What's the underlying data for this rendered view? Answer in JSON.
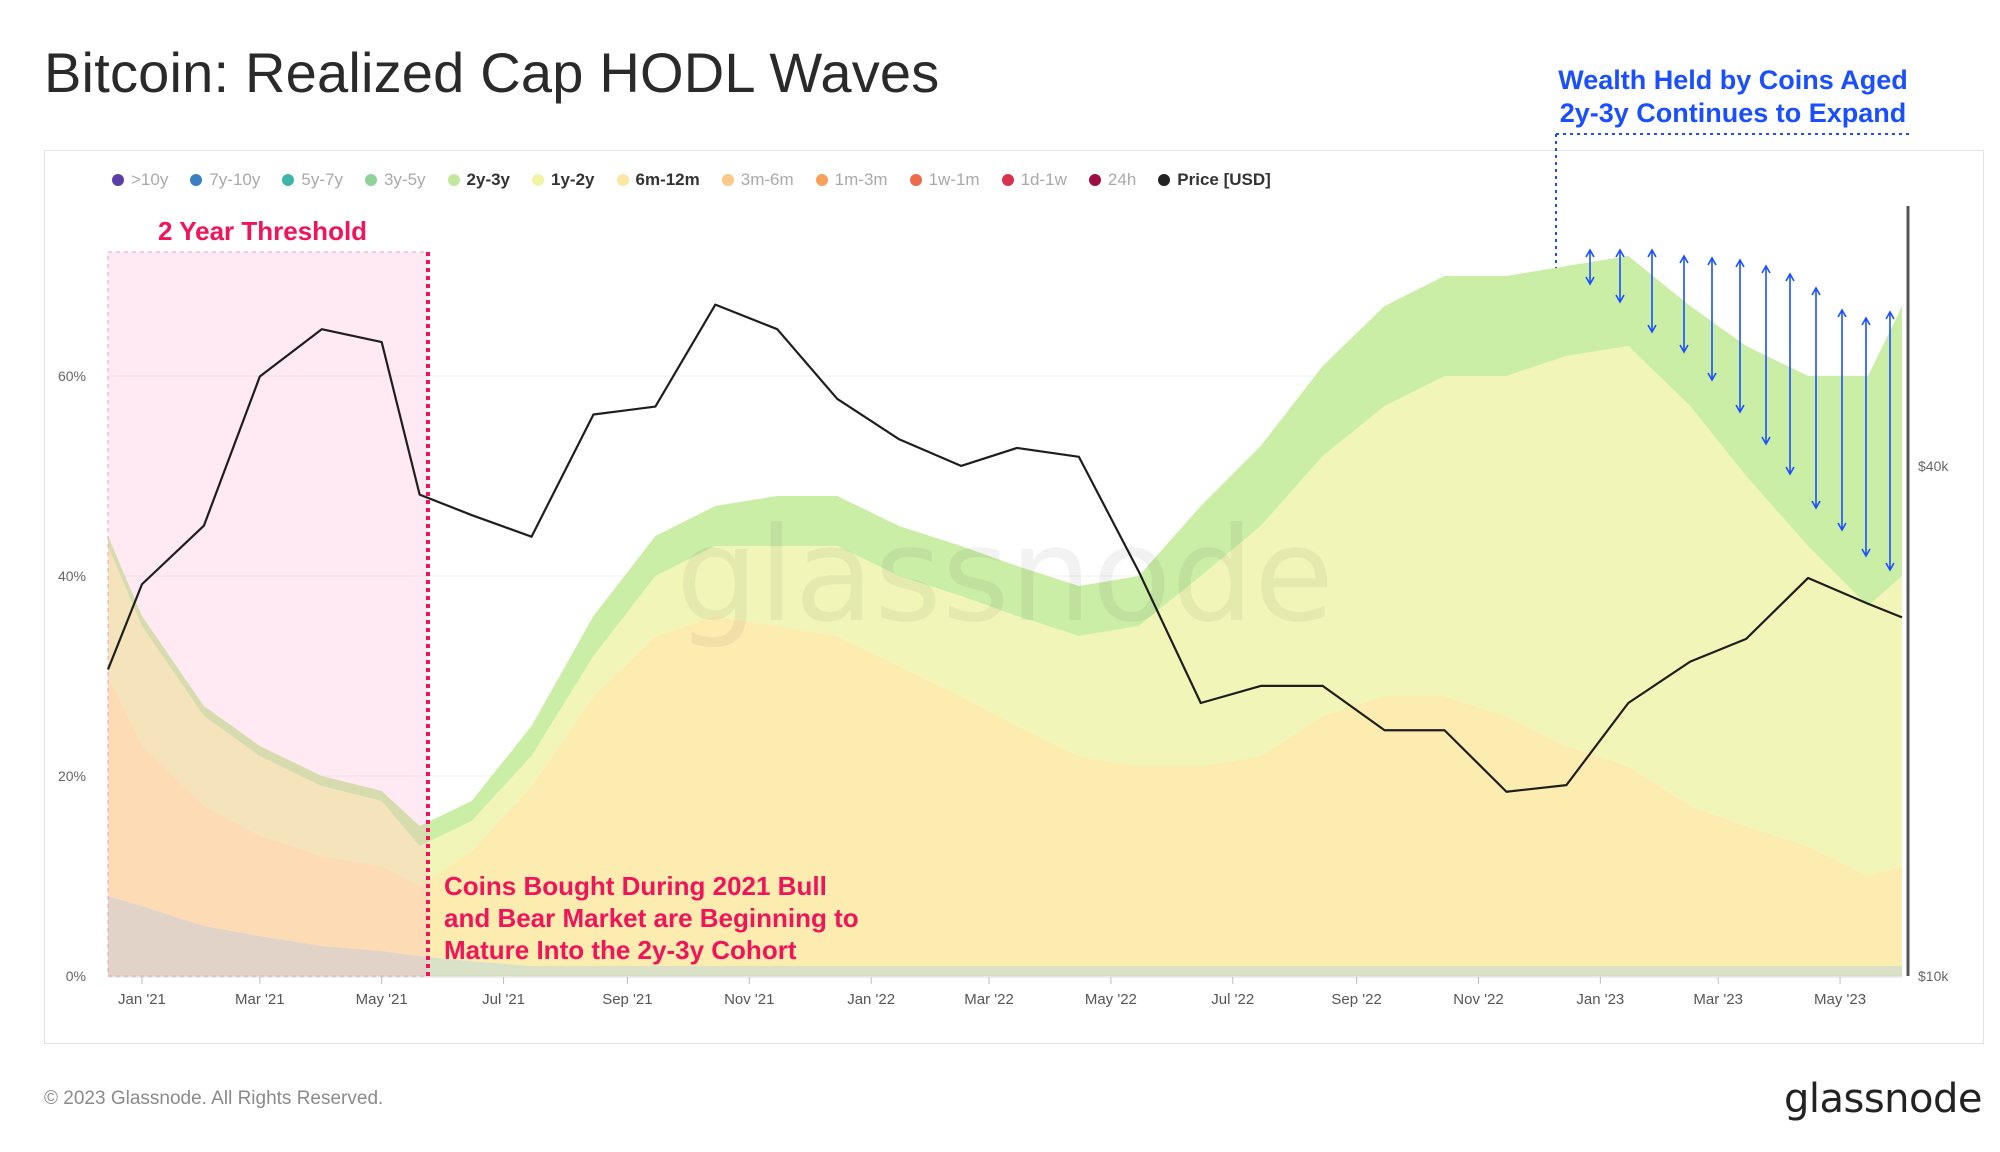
{
  "title": "Bitcoin: Realized Cap HODL Waves",
  "footer": "© 2023 Glassnode. All Rights Reserved.",
  "brand": "glassnode",
  "watermark": "glassnode",
  "legend": [
    {
      "label": ">10y",
      "color": "#5b3fa6",
      "active": false
    },
    {
      "label": "7y-10y",
      "color": "#3a7fc1",
      "active": false
    },
    {
      "label": "5y-7y",
      "color": "#3fb5a8",
      "active": false
    },
    {
      "label": "3y-5y",
      "color": "#8fd39b",
      "active": false
    },
    {
      "label": "2y-3y",
      "color": "#c2e89c",
      "active": true
    },
    {
      "label": "1y-2y",
      "color": "#f1f4a4",
      "active": true
    },
    {
      "label": "6m-12m",
      "color": "#fce6a3",
      "active": true
    },
    {
      "label": "3m-6m",
      "color": "#fbc98a",
      "active": false
    },
    {
      "label": "1m-3m",
      "color": "#f6a05b",
      "active": false
    },
    {
      "label": "1w-1m",
      "color": "#ee6b4a",
      "active": false
    },
    {
      "label": "1d-1w",
      "color": "#d9324f",
      "active": false
    },
    {
      "label": "24h",
      "color": "#9e0e45",
      "active": false
    },
    {
      "label": "Price [USD]",
      "color": "#222222",
      "active": true
    }
  ],
  "annotations": {
    "threshold": "2 Year Threshold",
    "coins_line1": "Coins Bought During 2021 Bull",
    "coins_line2": "and Bear Market are Beginning to",
    "coins_line3": "Mature Into the 2y-3y Cohort",
    "wealth_line1": "Wealth Held by Coins Aged",
    "wealth_line2": "2y-3y Continues to Expand"
  },
  "chart_data": {
    "type": "area",
    "x_ticks": [
      "Jan '21",
      "Mar '21",
      "May '21",
      "Jul '21",
      "Sep '21",
      "Nov '21",
      "Jan '22",
      "Mar '22",
      "May '22",
      "Jul '22",
      "Sep '22",
      "Nov '22",
      "Jan '23",
      "Mar '23",
      "May '23"
    ],
    "y_left_ticks": [
      "0%",
      "20%",
      "40%",
      "60%"
    ],
    "y_left_range": [
      0,
      70
    ],
    "y_right_ticks": [
      "$10k",
      "$40k"
    ],
    "y_right_scale": "log",
    "x": [
      "2020-12-15",
      "2021-01-01",
      "2021-02-01",
      "2021-03-01",
      "2021-04-01",
      "2021-05-01",
      "2021-05-20",
      "2021-06-15",
      "2021-07-15",
      "2021-08-15",
      "2021-09-15",
      "2021-10-15",
      "2021-11-15",
      "2021-12-15",
      "2022-01-15",
      "2022-02-15",
      "2022-03-15",
      "2022-04-15",
      "2022-05-15",
      "2022-06-15",
      "2022-07-15",
      "2022-08-15",
      "2022-09-15",
      "2022-10-15",
      "2022-11-15",
      "2022-12-15",
      "2023-01-15",
      "2023-02-15",
      "2023-03-15",
      "2023-04-15",
      "2023-05-15",
      "2023-06-01"
    ],
    "series": [
      {
        "name": "6m-12m",
        "values": [
          22,
          16,
          12,
          10,
          9,
          8.5,
          7,
          11,
          18,
          27,
          33,
          35,
          34,
          33,
          30,
          27,
          24,
          21,
          20,
          20,
          21,
          25,
          27,
          27,
          25,
          22,
          20,
          16,
          14,
          12,
          9,
          10
        ]
      },
      {
        "name": "1y-2y",
        "values": [
          13,
          12,
          9,
          8,
          7,
          6.5,
          4,
          3,
          3,
          4,
          6,
          7,
          8,
          9,
          9,
          10,
          11,
          12,
          14,
          19,
          23,
          26,
          29,
          32,
          34,
          39,
          42,
          40,
          35,
          30,
          27,
          29
        ]
      },
      {
        "name": "2y-3y",
        "values": [
          1,
          1,
          1,
          1,
          1,
          1,
          2,
          2,
          3,
          4,
          4,
          4,
          5,
          5,
          5,
          5,
          5,
          5,
          5,
          7,
          8,
          9,
          10,
          10,
          10,
          9,
          9,
          10,
          13,
          17,
          23,
          27
        ]
      },
      {
        "name": "3y-5y",
        "values": [
          8,
          7,
          5,
          4,
          3,
          2.5,
          2,
          1.5,
          1,
          1,
          1,
          1,
          1,
          1,
          1,
          1,
          1,
          1,
          1,
          1,
          1,
          1,
          1,
          1,
          1,
          1,
          1,
          1,
          1,
          1,
          1,
          1
        ]
      },
      {
        "name": "Price [USD]",
        "values": [
          23000,
          29000,
          34000,
          51000,
          58000,
          56000,
          37000,
          35000,
          33000,
          46000,
          47000,
          62000,
          58000,
          48000,
          43000,
          40000,
          42000,
          41000,
          30000,
          21000,
          22000,
          22000,
          19500,
          19500,
          16500,
          16800,
          21000,
          23500,
          25000,
          29500,
          27500,
          26500
        ]
      }
    ]
  }
}
